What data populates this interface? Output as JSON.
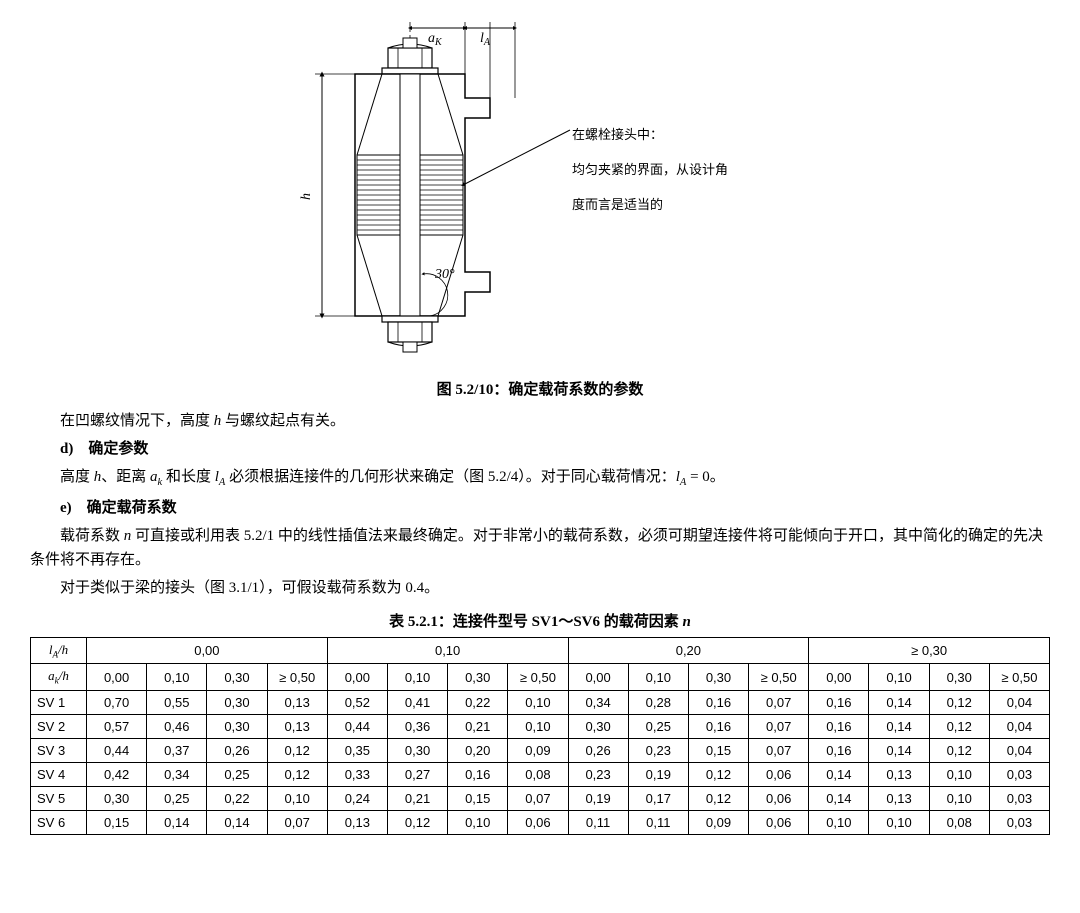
{
  "figure": {
    "dim_ak": "a",
    "dim_ak_sub": "K",
    "dim_la": "l",
    "dim_la_sub": "A",
    "dim_h": "h",
    "angle": "30°",
    "annotation_line1": "在螺栓接头中：",
    "annotation_line2": "均匀夹紧的界面，从设计角",
    "annotation_line3": "度而言是适当的",
    "caption": "图 5.2/10：确定载荷系数的参数",
    "diagram_stroke": "#000000",
    "hatch_stroke": "#000000",
    "background": "#ffffff"
  },
  "text": {
    "para1_pre": "在凹螺纹情况下，高度 ",
    "para1_h": "h",
    "para1_post": " 与螺纹起点有关。",
    "item_d": "d)　确定参数",
    "para_d_1": "高度 ",
    "para_d_h": "h",
    "para_d_2": "、距离 ",
    "para_d_ak": "a",
    "para_d_ak_sub": "k",
    "para_d_3": " 和长度 ",
    "para_d_la": "l",
    "para_d_la_sub": "A",
    "para_d_4": " 必须根据连接件的几何形状来确定（图 5.2/4）。对于同心载荷情况：",
    "para_d_la2": "l",
    "para_d_la2_sub": "A",
    "para_d_5": " = 0。",
    "item_e": "e)　确定载荷系数",
    "para_e_1": "载荷系数 ",
    "para_e_n": "n",
    "para_e_2": " 可直接或利用表 5.2/1 中的线性插值法来最终确定。对于非常小的载荷系数，必须可期望连接件将可能倾向于开口，其中简化的确定的先决条件将不再存在。",
    "para_e_3": "对于类似于梁的接头（图 3.1/1），可假设载荷系数为 0.4。",
    "table_caption_pre": "表 5.2.1：连接件型号 SV1～SV6 的载荷因素 ",
    "table_caption_n": "n"
  },
  "table": {
    "corner_top": "l",
    "corner_top_sub": "A",
    "corner_top_post": "/h",
    "corner_second": "a",
    "corner_second_sub": "k",
    "corner_second_post": "/h",
    "groups": [
      "0,00",
      "0,10",
      "0,20",
      "≥ 0,30"
    ],
    "sub_headers": [
      "0,00",
      "0,10",
      "0,30",
      "≥ 0,50",
      "0,00",
      "0,10",
      "0,30",
      "≥ 0,50",
      "0,00",
      "0,10",
      "0,30",
      "≥ 0,50",
      "0,00",
      "0,10",
      "0,30",
      "≥ 0,50"
    ],
    "rows": [
      {
        "label": "SV 1",
        "cells": [
          "0,70",
          "0,55",
          "0,30",
          "0,13",
          "0,52",
          "0,41",
          "0,22",
          "0,10",
          "0,34",
          "0,28",
          "0,16",
          "0,07",
          "0,16",
          "0,14",
          "0,12",
          "0,04"
        ]
      },
      {
        "label": "SV 2",
        "cells": [
          "0,57",
          "0,46",
          "0,30",
          "0,13",
          "0,44",
          "0,36",
          "0,21",
          "0,10",
          "0,30",
          "0,25",
          "0,16",
          "0,07",
          "0,16",
          "0,14",
          "0,12",
          "0,04"
        ]
      },
      {
        "label": "SV 3",
        "cells": [
          "0,44",
          "0,37",
          "0,26",
          "0,12",
          "0,35",
          "0,30",
          "0,20",
          "0,09",
          "0,26",
          "0,23",
          "0,15",
          "0,07",
          "0,16",
          "0,14",
          "0,12",
          "0,04"
        ]
      },
      {
        "label": "SV 4",
        "cells": [
          "0,42",
          "0,34",
          "0,25",
          "0,12",
          "0,33",
          "0,27",
          "0,16",
          "0,08",
          "0,23",
          "0,19",
          "0,12",
          "0,06",
          "0,14",
          "0,13",
          "0,10",
          "0,03"
        ]
      },
      {
        "label": "SV 5",
        "cells": [
          "0,30",
          "0,25",
          "0,22",
          "0,10",
          "0,24",
          "0,21",
          "0,15",
          "0,07",
          "0,19",
          "0,17",
          "0,12",
          "0,06",
          "0,14",
          "0,13",
          "0,10",
          "0,03"
        ]
      },
      {
        "label": "SV 6",
        "cells": [
          "0,15",
          "0,14",
          "0,14",
          "0,07",
          "0,13",
          "0,12",
          "0,10",
          "0,06",
          "0,11",
          "0,11",
          "0,09",
          "0,06",
          "0,10",
          "0,10",
          "0,08",
          "0,03"
        ]
      }
    ],
    "border_color": "#000000",
    "font_family": "Arial",
    "cell_fontsize": 13
  }
}
